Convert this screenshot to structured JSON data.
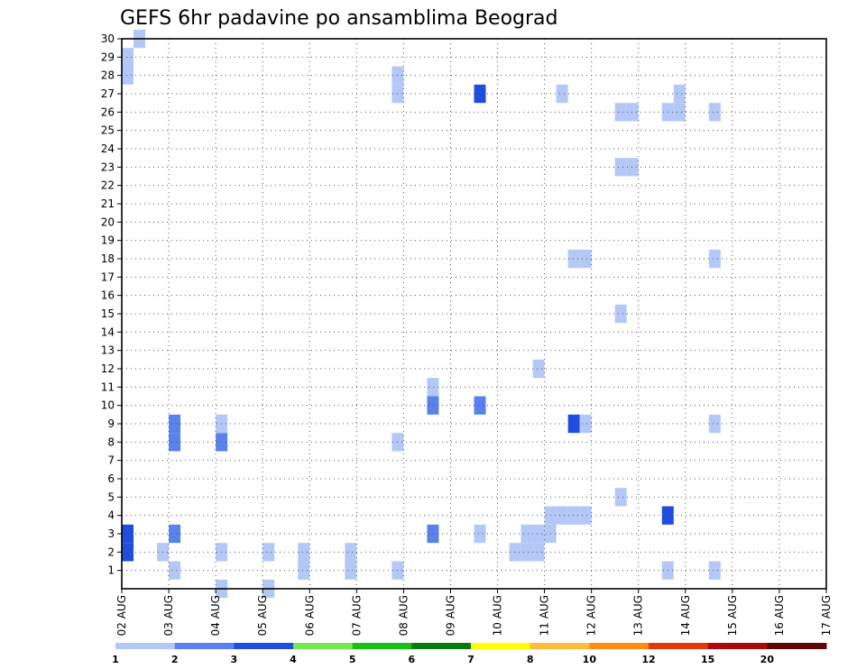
{
  "chart_data": {
    "type": "heatmap",
    "title": "GEFS 6hr padavine po ansamblima Beograd",
    "xlabel": "",
    "ylabel": "",
    "x_ticks": [
      "02 AUG",
      "03 AUG",
      "04 AUG",
      "05 AUG",
      "06 AUG",
      "07 AUG",
      "08 AUG",
      "09 AUG",
      "10 AUG",
      "11 AUG",
      "12 AUG",
      "13 AUG",
      "14 AUG",
      "15 AUG",
      "16 AUG",
      "17 AUG"
    ],
    "y_ticks": [
      1,
      2,
      3,
      4,
      5,
      6,
      7,
      8,
      9,
      10,
      11,
      12,
      13,
      14,
      15,
      16,
      17,
      18,
      19,
      20,
      21,
      22,
      23,
      24,
      25,
      26,
      27,
      28,
      29,
      30
    ],
    "ylim": [
      0,
      30
    ],
    "grid": true,
    "time_step_hours": 6,
    "colorbar": {
      "labels": [
        "1",
        "2",
        "3",
        "4",
        "5",
        "6",
        "7",
        "8",
        "10",
        "12",
        "15",
        "20"
      ],
      "colors": [
        "#b4c8f8",
        "#5b82ea",
        "#1e4de0",
        "#72e852",
        "#18c018",
        "#087a08",
        "#ffff00",
        "#ffbb3a",
        "#ff8c10",
        "#e03a0a",
        "#aa0a0a",
        "#600808"
      ]
    },
    "cells": [
      [
        0,
        0,
        2,
        "#1e4de0"
      ],
      [
        0,
        0,
        3,
        "#1e4de0"
      ],
      [
        0,
        0,
        28,
        "#b4c8f8"
      ],
      [
        0,
        0,
        29,
        "#b4c8f8"
      ],
      [
        0,
        1,
        30,
        "#b4c8f8"
      ],
      [
        1,
        0,
        1,
        "#b4c8f8"
      ],
      [
        1,
        0,
        3,
        "#5b82ea"
      ],
      [
        1,
        0,
        8,
        "#5b82ea"
      ],
      [
        1,
        0,
        9,
        "#5b82ea"
      ],
      [
        2,
        0,
        2,
        "#b4c8f8"
      ],
      [
        2,
        0,
        8,
        "#5b82ea"
      ],
      [
        2,
        0,
        9,
        "#b4c8f8"
      ],
      [
        3,
        0,
        2,
        "#b4c8f8"
      ],
      [
        0,
        3,
        2,
        "#b4c8f8"
      ],
      [
        2,
        0,
        0,
        "#b4c8f8"
      ],
      [
        3,
        0,
        0,
        "#b4c8f8"
      ],
      [
        3,
        3,
        1,
        "#b4c8f8"
      ],
      [
        3,
        3,
        2,
        "#b4c8f8"
      ],
      [
        4,
        3,
        1,
        "#b4c8f8"
      ],
      [
        4,
        3,
        2,
        "#b4c8f8"
      ],
      [
        5,
        3,
        1,
        "#b4c8f8"
      ],
      [
        5,
        3,
        8,
        "#b4c8f8"
      ],
      [
        5,
        3,
        27,
        "#b4c8f8"
      ],
      [
        5,
        3,
        28,
        "#b4c8f8"
      ],
      [
        6,
        2,
        3,
        "#5b82ea"
      ],
      [
        6,
        2,
        10,
        "#5b82ea"
      ],
      [
        6,
        2,
        11,
        "#b4c8f8"
      ],
      [
        7,
        2,
        3,
        "#b4c8f8"
      ],
      [
        7,
        2,
        10,
        "#5b82ea"
      ],
      [
        7,
        2,
        27,
        "#1e4de0"
      ],
      [
        8,
        1,
        2,
        "#b4c8f8"
      ],
      [
        8,
        2,
        2,
        "#b4c8f8"
      ],
      [
        8,
        2,
        3,
        "#b4c8f8"
      ],
      [
        8,
        3,
        2,
        "#b4c8f8"
      ],
      [
        8,
        3,
        3,
        "#b4c8f8"
      ],
      [
        8,
        3,
        12,
        "#b4c8f8"
      ],
      [
        9,
        0,
        3,
        "#b4c8f8"
      ],
      [
        9,
        0,
        4,
        "#b4c8f8"
      ],
      [
        9,
        1,
        4,
        "#b4c8f8"
      ],
      [
        9,
        2,
        4,
        "#b4c8f8"
      ],
      [
        9,
        3,
        4,
        "#b4c8f8"
      ],
      [
        9,
        2,
        9,
        "#1e4de0"
      ],
      [
        9,
        3,
        9,
        "#b4c8f8"
      ],
      [
        9,
        2,
        18,
        "#b4c8f8"
      ],
      [
        9,
        3,
        18,
        "#b4c8f8"
      ],
      [
        9,
        1,
        27,
        "#b4c8f8"
      ],
      [
        10,
        2,
        5,
        "#b4c8f8"
      ],
      [
        10,
        2,
        15,
        "#b4c8f8"
      ],
      [
        10,
        2,
        23,
        "#b4c8f8"
      ],
      [
        10,
        3,
        23,
        "#b4c8f8"
      ],
      [
        10,
        2,
        26,
        "#b4c8f8"
      ],
      [
        10,
        3,
        26,
        "#b4c8f8"
      ],
      [
        11,
        2,
        1,
        "#b4c8f8"
      ],
      [
        11,
        2,
        4,
        "#1e4de0"
      ],
      [
        11,
        2,
        26,
        "#b4c8f8"
      ],
      [
        11,
        3,
        26,
        "#b4c8f8"
      ],
      [
        11,
        3,
        27,
        "#b4c8f8"
      ],
      [
        12,
        2,
        1,
        "#b4c8f8"
      ],
      [
        12,
        2,
        26,
        "#b4c8f8"
      ],
      [
        12,
        2,
        9,
        "#b4c8f8"
      ],
      [
        12,
        2,
        18,
        "#b4c8f8"
      ]
    ]
  }
}
